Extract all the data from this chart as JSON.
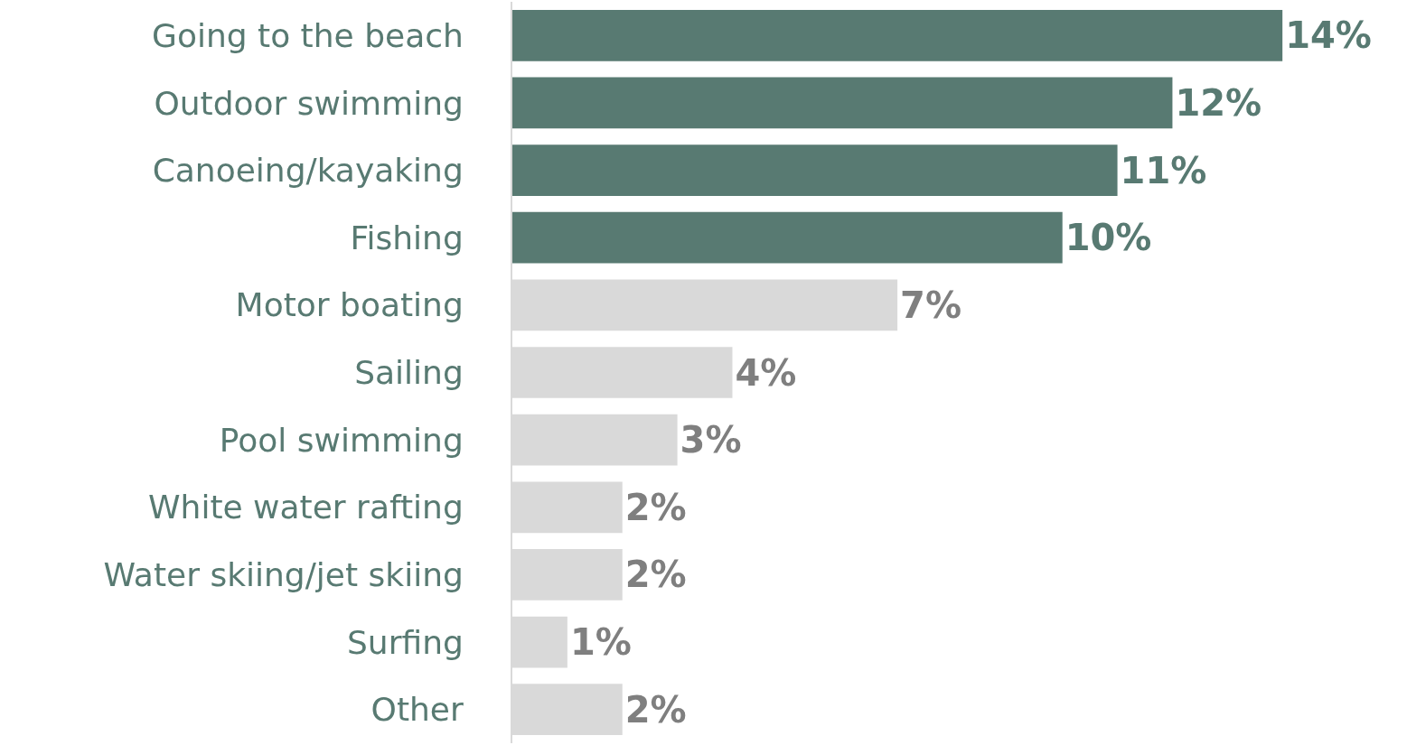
{
  "chart_data": {
    "type": "bar",
    "orientation": "horizontal",
    "categories": [
      "Going to the beach",
      "Outdoor swimming",
      "Canoeing/kayaking",
      "Fishing",
      "Motor boating",
      "Sailing",
      "Pool swimming",
      "White water rafting",
      "Water skiing/jet skiing",
      "Surfing",
      "Other"
    ],
    "values": [
      14,
      12,
      11,
      10,
      7,
      4,
      3,
      2,
      2,
      1,
      2
    ],
    "value_labels": [
      "14%",
      "12%",
      "11%",
      "10%",
      "7%",
      "4%",
      "3%",
      "2%",
      "2%",
      "1%",
      "2%"
    ],
    "colors": [
      "#587a72",
      "#587a72",
      "#587a72",
      "#587a72",
      "#d9d9d9",
      "#d9d9d9",
      "#d9d9d9",
      "#d9d9d9",
      "#d9d9d9",
      "#d9d9d9",
      "#d9d9d9"
    ]
  }
}
